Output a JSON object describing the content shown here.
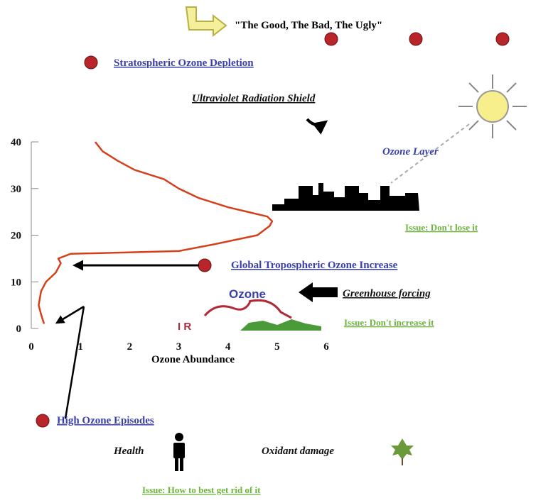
{
  "chart_data": {
    "type": "line",
    "x": [
      0.26,
      0.2,
      0.15,
      0.2,
      0.3,
      0.5,
      0.6,
      0.55,
      0.8,
      3.0,
      3.7,
      4.6,
      4.85,
      4.9,
      4.8,
      4.4,
      4.0,
      3.4,
      3.0,
      2.7,
      2.1,
      1.75,
      1.45,
      1.3
    ],
    "values": [
      1,
      3,
      5,
      8,
      10,
      12,
      14,
      15,
      16,
      16.6,
      18,
      20,
      22,
      23,
      24,
      25,
      26,
      28,
      30,
      32,
      34,
      36,
      38,
      40
    ],
    "color": "#d4401c",
    "xlim": [
      0,
      6
    ],
    "ylim": [
      0,
      40
    ],
    "xticks": [
      0,
      1,
      2,
      3,
      4,
      5,
      6
    ],
    "yticks": [
      0,
      10,
      20,
      30,
      40
    ],
    "xlabel": "Ozone Abundance",
    "annotations": [
      "\"The Good, The Bad, The Ugly\"",
      "Stratospheric Ozone Depletion",
      "Ultraviolet Radiation Shield",
      "Ozone Layer",
      "Issue:  Don't lose it",
      "Global Tropospheric Ozone Increase",
      "Ozone",
      "Greenhouse forcing",
      "I R",
      "Issue:  Don't increase it",
      "High Ozone Episodes",
      "Health",
      "Oxidant damage",
      "Issue:  How to best get rid of it"
    ]
  }
}
